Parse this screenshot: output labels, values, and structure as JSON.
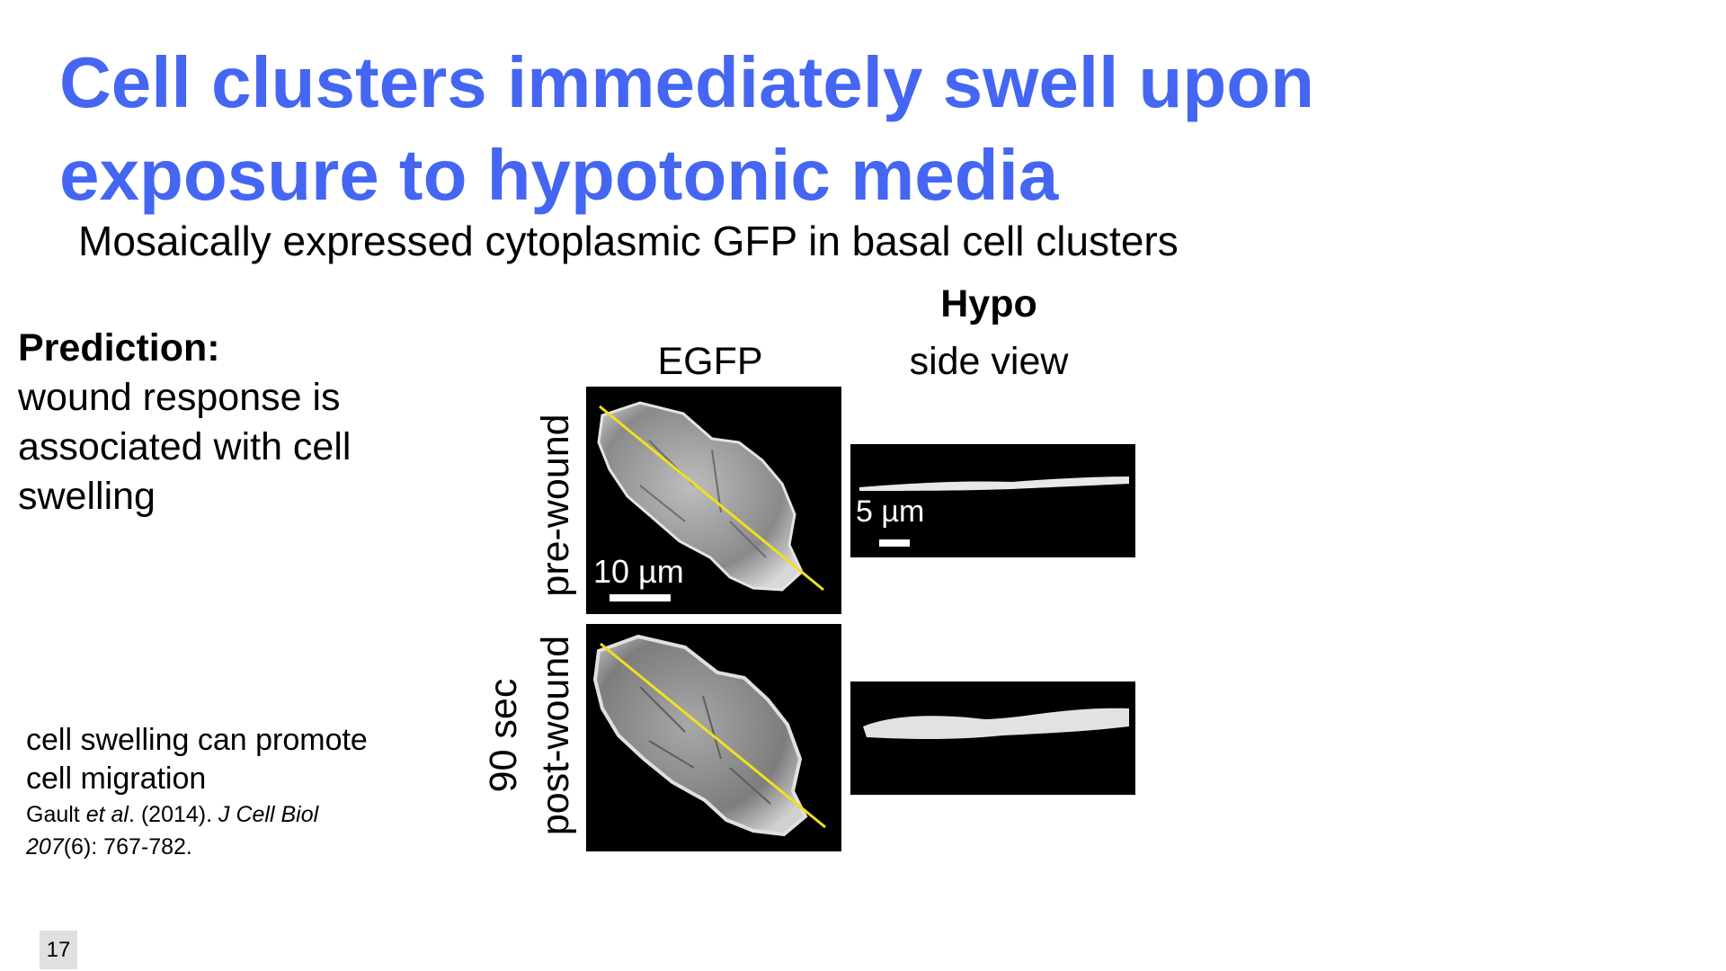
{
  "slide": {
    "title": "Cell clusters immediately swell upon exposure to hypotonic media",
    "subtitle": "Mosaically expressed cytoplasmic GFP in basal cell clusters",
    "prediction_heading": "Prediction:",
    "prediction_body": "wound response is associated with cell swelling",
    "note": "cell swelling can promote cell migration",
    "citation": {
      "author": "Gault ",
      "etal": "et al",
      "year_part": ". (2014). ",
      "journal": "J Cell Biol",
      "volume": "207",
      "rest": "(6): 767-782."
    },
    "page_number": "17"
  },
  "figure": {
    "column_header_hypo": "Hypo",
    "column_egfp": "EGFP",
    "column_side_view": "side view",
    "row_pre": "pre-wound",
    "row_post_time": "90 sec",
    "row_post": "post-wound",
    "scale_bar_egfp": "10 µm",
    "scale_bar_side": "5 µm",
    "colors": {
      "line_scan": "#f0e020",
      "panel_bg": "#000000",
      "title": "#4466f2"
    }
  }
}
